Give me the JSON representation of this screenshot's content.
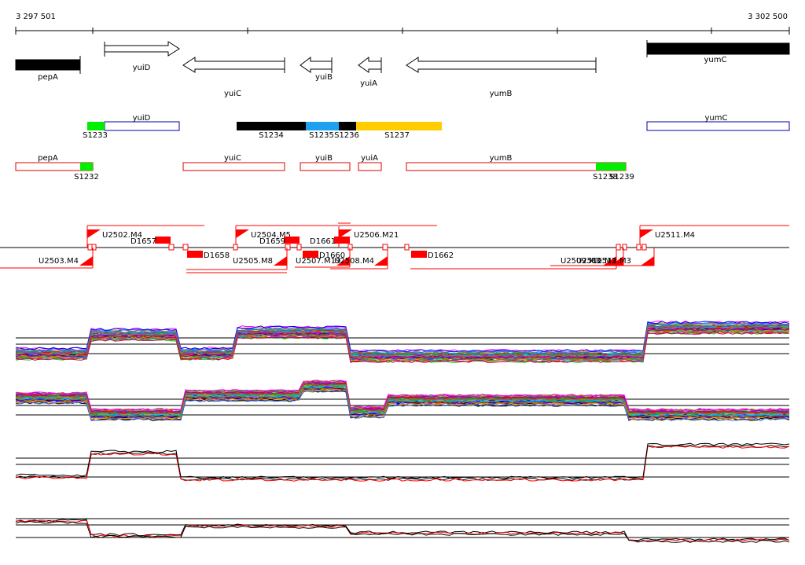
{
  "ruler": {
    "start_label": "3 297 501",
    "end_label": "3 302 500"
  },
  "genes": [
    {
      "label": "pepA",
      "strand": "none"
    },
    {
      "label": "yuiD",
      "strand": "+"
    },
    {
      "label": "yuiC",
      "strand": "-"
    },
    {
      "label": "yuiB",
      "strand": "-"
    },
    {
      "label": "yuiA",
      "strand": "-"
    },
    {
      "label": "yumB",
      "strand": "-"
    },
    {
      "label": "yumC",
      "strand": "none"
    }
  ],
  "track1": [
    {
      "gene": "yuiD"
    },
    {
      "gene": "yumC"
    }
  ],
  "segments1": [
    {
      "label": "S1233",
      "color": "#00ee00"
    },
    {
      "label": "S1234",
      "color": "#000000"
    },
    {
      "label": "S1235",
      "color": "#1ea0f0"
    },
    {
      "label": "S1236",
      "color": "#000000"
    },
    {
      "label": "S1237",
      "color": "#ffcc00"
    }
  ],
  "track2": [
    {
      "gene": "pepA"
    },
    {
      "gene": "yuiC"
    },
    {
      "gene": "yuiB"
    },
    {
      "gene": "yuiA"
    },
    {
      "gene": "yumB"
    }
  ],
  "segments2": [
    {
      "label": "S1232",
      "color": "#00ee00"
    },
    {
      "label": "S1238",
      "color": "#00ee00"
    },
    {
      "label": "S1239",
      "color": "#00ee00"
    }
  ],
  "upper_features": [
    {
      "label": "U2502.M4"
    },
    {
      "label": "U2504.M5"
    },
    {
      "label": "U2506.M21"
    },
    {
      "label": "U2511.M4"
    }
  ],
  "lower_features": [
    {
      "label": "U2503.M4"
    },
    {
      "label": "U2505.M8"
    },
    {
      "label": "U2507.M19"
    },
    {
      "label": "U2508.M4"
    },
    {
      "label": "U2509.M3"
    },
    {
      "label": "U2510.M3"
    },
    {
      "label": "U2512.M3"
    }
  ],
  "deletions": [
    {
      "label": "D1657"
    },
    {
      "label": "D1658"
    },
    {
      "label": "D1659"
    },
    {
      "label": "D1660"
    },
    {
      "label": "D1661"
    },
    {
      "label": "D1662"
    }
  ],
  "colors": {
    "segment_outline_pos": "#0000aa",
    "segment_outline_neg": "#dd0000",
    "feature": "#ff0000"
  }
}
